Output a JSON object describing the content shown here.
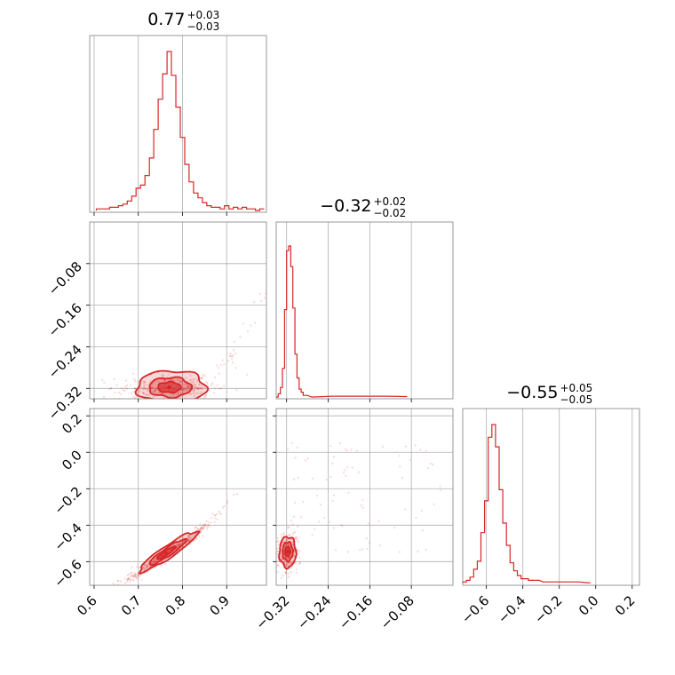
{
  "chart_data": {
    "type": "corner",
    "color": "#d62728",
    "grid": true,
    "parameters": [
      {
        "median": "0.77",
        "plus": "+0.03",
        "minus": "−0.03",
        "range": [
          0.59,
          0.99
        ]
      },
      {
        "median": "−0.32",
        "plus": "+0.02",
        "minus": "−0.02",
        "range": [
          -0.34,
          0.0
        ]
      },
      {
        "median": "−0.55",
        "plus": "+0.05",
        "minus": "−0.05",
        "range": [
          -0.73,
          0.24
        ]
      }
    ],
    "ticks": {
      "p0": [
        {
          "v": 0.6,
          "label": "0.6"
        },
        {
          "v": 0.7,
          "label": "0.7"
        },
        {
          "v": 0.8,
          "label": "0.8"
        },
        {
          "v": 0.9,
          "label": "0.9"
        }
      ],
      "p1": [
        {
          "v": -0.32,
          "label": "−0.32"
        },
        {
          "v": -0.24,
          "label": "−0.24"
        },
        {
          "v": -0.16,
          "label": "−0.16"
        },
        {
          "v": -0.08,
          "label": "−0.08"
        }
      ],
      "p2": [
        {
          "v": -0.6,
          "label": "−0.6"
        },
        {
          "v": -0.4,
          "label": "−0.4"
        },
        {
          "v": -0.2,
          "label": "−0.2"
        },
        {
          "v": 0.0,
          "label": "0.0"
        },
        {
          "v": 0.2,
          "label": "0.2"
        }
      ]
    },
    "hist_p0": [
      {
        "x": 0.61,
        "h": 0.01
      },
      {
        "x": 0.62,
        "h": 0.01
      },
      {
        "x": 0.63,
        "h": 0.01
      },
      {
        "x": 0.64,
        "h": 0.02
      },
      {
        "x": 0.65,
        "h": 0.02
      },
      {
        "x": 0.66,
        "h": 0.03
      },
      {
        "x": 0.67,
        "h": 0.04
      },
      {
        "x": 0.68,
        "h": 0.06
      },
      {
        "x": 0.69,
        "h": 0.09
      },
      {
        "x": 0.7,
        "h": 0.14
      },
      {
        "x": 0.71,
        "h": 0.16
      },
      {
        "x": 0.72,
        "h": 0.22
      },
      {
        "x": 0.73,
        "h": 0.33
      },
      {
        "x": 0.74,
        "h": 0.51
      },
      {
        "x": 0.75,
        "h": 0.7
      },
      {
        "x": 0.76,
        "h": 0.86
      },
      {
        "x": 0.77,
        "h": 1.0
      },
      {
        "x": 0.78,
        "h": 0.85
      },
      {
        "x": 0.79,
        "h": 0.65
      },
      {
        "x": 0.8,
        "h": 0.46
      },
      {
        "x": 0.81,
        "h": 0.29
      },
      {
        "x": 0.82,
        "h": 0.18
      },
      {
        "x": 0.83,
        "h": 0.11
      },
      {
        "x": 0.84,
        "h": 0.08
      },
      {
        "x": 0.85,
        "h": 0.05
      },
      {
        "x": 0.86,
        "h": 0.03
      },
      {
        "x": 0.87,
        "h": 0.02
      },
      {
        "x": 0.88,
        "h": 0.02
      },
      {
        "x": 0.89,
        "h": 0.01
      },
      {
        "x": 0.9,
        "h": 0.03
      },
      {
        "x": 0.91,
        "h": 0.01
      },
      {
        "x": 0.92,
        "h": 0.02
      },
      {
        "x": 0.93,
        "h": 0.01
      },
      {
        "x": 0.94,
        "h": 0.02
      },
      {
        "x": 0.95,
        "h": 0.01
      },
      {
        "x": 0.96,
        "h": 0.01
      },
      {
        "x": 0.97,
        "h": 0.0
      },
      {
        "x": 0.98,
        "h": 0.01
      }
    ],
    "hist_p1": [
      {
        "x": -0.338,
        "h": 0.0
      },
      {
        "x": -0.334,
        "h": 0.02
      },
      {
        "x": -0.33,
        "h": 0.06
      },
      {
        "x": -0.326,
        "h": 0.18
      },
      {
        "x": -0.322,
        "h": 0.55
      },
      {
        "x": -0.318,
        "h": 0.92
      },
      {
        "x": -0.314,
        "h": 0.95
      },
      {
        "x": -0.31,
        "h": 0.82
      },
      {
        "x": -0.306,
        "h": 0.56
      },
      {
        "x": -0.302,
        "h": 0.27
      },
      {
        "x": -0.298,
        "h": 0.12
      },
      {
        "x": -0.294,
        "h": 0.05
      },
      {
        "x": -0.29,
        "h": 0.03
      },
      {
        "x": -0.286,
        "h": 0.01
      },
      {
        "x": -0.282,
        "h": 0.01
      },
      {
        "x": -0.27,
        "h": 0.0
      },
      {
        "x": -0.23,
        "h": 0.005
      },
      {
        "x": -0.2,
        "h": 0.005
      },
      {
        "x": -0.17,
        "h": 0.005
      },
      {
        "x": -0.13,
        "h": 0.005
      },
      {
        "x": -0.09,
        "h": 0.003
      }
    ],
    "hist_p2": [
      {
        "x": -0.72,
        "h": 0.01
      },
      {
        "x": -0.7,
        "h": 0.02
      },
      {
        "x": -0.68,
        "h": 0.04
      },
      {
        "x": -0.66,
        "h": 0.09
      },
      {
        "x": -0.64,
        "h": 0.14
      },
      {
        "x": -0.62,
        "h": 0.32
      },
      {
        "x": -0.6,
        "h": 0.52
      },
      {
        "x": -0.58,
        "h": 0.92
      },
      {
        "x": -0.56,
        "h": 1.0
      },
      {
        "x": -0.54,
        "h": 0.86
      },
      {
        "x": -0.52,
        "h": 0.59
      },
      {
        "x": -0.5,
        "h": 0.38
      },
      {
        "x": -0.48,
        "h": 0.24
      },
      {
        "x": -0.46,
        "h": 0.13
      },
      {
        "x": -0.44,
        "h": 0.08
      },
      {
        "x": -0.42,
        "h": 0.05
      },
      {
        "x": -0.4,
        "h": 0.03
      },
      {
        "x": -0.38,
        "h": 0.03
      },
      {
        "x": -0.36,
        "h": 0.02
      },
      {
        "x": -0.32,
        "h": 0.02
      },
      {
        "x": -0.28,
        "h": 0.01
      },
      {
        "x": -0.22,
        "h": 0.01
      },
      {
        "x": -0.16,
        "h": 0.01
      },
      {
        "x": -0.1,
        "h": 0.01
      },
      {
        "x": -0.04,
        "h": 0.005
      }
    ],
    "contours": {
      "p1_vs_p0": [
        {
          "cx": 0.775,
          "cy": -0.318,
          "rx": 0.078,
          "ry": 0.032,
          "angle": 0
        },
        {
          "cx": 0.772,
          "cy": -0.318,
          "rx": 0.048,
          "ry": 0.019,
          "angle": 0
        },
        {
          "cx": 0.77,
          "cy": -0.318,
          "rx": 0.026,
          "ry": 0.01,
          "angle": 0
        }
      ],
      "p2_vs_p0": [
        {
          "cx": 0.768,
          "cy": -0.545,
          "rx": 0.078,
          "ry": 0.034,
          "angle": -34
        },
        {
          "cx": 0.766,
          "cy": -0.548,
          "rx": 0.05,
          "ry": 0.022,
          "angle": -34
        },
        {
          "cx": 0.763,
          "cy": -0.552,
          "rx": 0.025,
          "ry": 0.012,
          "angle": -34
        }
      ],
      "p2_vs_p1": [
        {
          "cx": -0.318,
          "cy": -0.548,
          "rx": 0.016,
          "ry": 0.085,
          "angle": 0
        },
        {
          "cx": -0.318,
          "cy": -0.545,
          "rx": 0.01,
          "ry": 0.052,
          "angle": 0
        },
        {
          "cx": -0.318,
          "cy": -0.545,
          "rx": 0.005,
          "ry": 0.026,
          "angle": 0
        }
      ]
    }
  }
}
